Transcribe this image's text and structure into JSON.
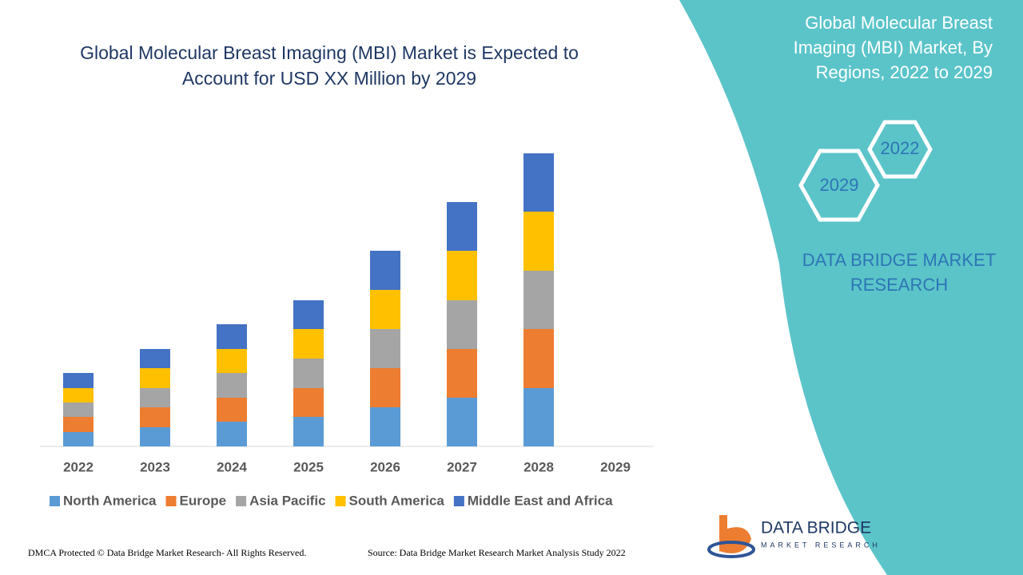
{
  "chart_data": {
    "type": "bar",
    "stacked": true,
    "title": "Global Molecular Breast Imaging (MBI) Market is Expected to Account for USD XX Million by 2029",
    "categories": [
      "2022",
      "2023",
      "2024",
      "2025",
      "2026",
      "2027",
      "2028",
      "2029"
    ],
    "series": [
      {
        "name": "North America",
        "color": "#5b9bd5",
        "values": [
          18,
          24,
          31,
          37,
          49,
          61,
          73,
          null
        ]
      },
      {
        "name": "Europe",
        "color": "#ed7d31",
        "values": [
          19,
          25,
          30,
          36,
          49,
          61,
          74,
          null
        ]
      },
      {
        "name": "Asia Pacific",
        "color": "#a5a5a5",
        "values": [
          18,
          24,
          31,
          37,
          49,
          61,
          73,
          null
        ]
      },
      {
        "name": "South America",
        "color": "#ffc000",
        "values": [
          18,
          25,
          30,
          37,
          49,
          62,
          74,
          null
        ]
      },
      {
        "name": "Middle East and Africa",
        "color": "#4472c4",
        "values": [
          19,
          24,
          31,
          36,
          49,
          61,
          73,
          null
        ]
      }
    ],
    "legend": "bottom"
  },
  "side_panel": {
    "title_lines": [
      "Global Molecular Breast",
      "Imaging (MBI) Market, By",
      "Regions, 2022 to 2029"
    ],
    "hexagons": [
      "2022",
      "2029"
    ],
    "brand_lines": [
      "DATA BRIDGE MARKET",
      "RESEARCH"
    ]
  },
  "logo": {
    "name": "DATA BRIDGE",
    "tagline": "MARKET RESEARCH"
  },
  "footer": {
    "copyright": "DMCA Protected © Data Bridge Market Research- All Rights Reserved.",
    "source": "Source: Data Bridge Market Research Market Analysis Study 2022"
  }
}
